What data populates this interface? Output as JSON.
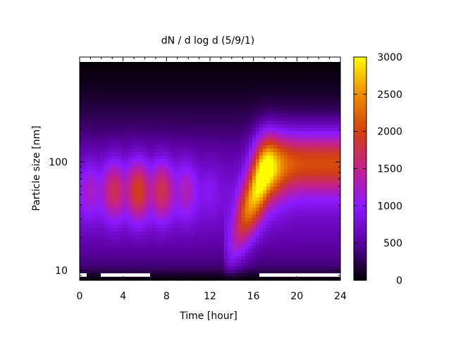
{
  "chart_data": {
    "type": "heatmap",
    "title": "dN / d log d (5/9/1)",
    "xlabel": "Time [hour]",
    "ylabel": "Particle size [nm]",
    "xlim": [
      0,
      24
    ],
    "ylim_nm": [
      8,
      900
    ],
    "y_scale": "log",
    "x_ticks": [
      0,
      4,
      8,
      12,
      16,
      20,
      24
    ],
    "x_tick_labels": [
      "0",
      "4",
      "8",
      "12",
      "16",
      "20",
      "24"
    ],
    "y_ticks": [
      10,
      100
    ],
    "y_tick_labels": [
      "10",
      "100"
    ],
    "colorbar": {
      "min": 0,
      "max": 3000,
      "ticks": [
        0,
        500,
        1000,
        1500,
        2000,
        2500,
        3000
      ],
      "tick_labels": [
        "0",
        "500",
        "1000",
        "1500",
        "2000",
        "2500",
        "3000"
      ],
      "colormap": "gnuplot-pm3d",
      "stops": [
        "#000000",
        "#5a00a0",
        "#8c1aff",
        "#c2208c",
        "#d24010",
        "#ee8c00",
        "#fffd00"
      ]
    },
    "features": [
      {
        "name": "morning-band",
        "x_range": [
          0,
          10
        ],
        "size_nm": [
          25,
          120
        ],
        "peak": 1800
      },
      {
        "name": "growth-event",
        "start_hour": 14,
        "start_size_nm": 12,
        "end_hour": 17.5,
        "end_size_nm": 60,
        "peak": 2400
      },
      {
        "name": "afternoon-band",
        "x_range": [
          17,
          24
        ],
        "size_nm": [
          50,
          200
        ],
        "peak": 2000
      }
    ]
  }
}
